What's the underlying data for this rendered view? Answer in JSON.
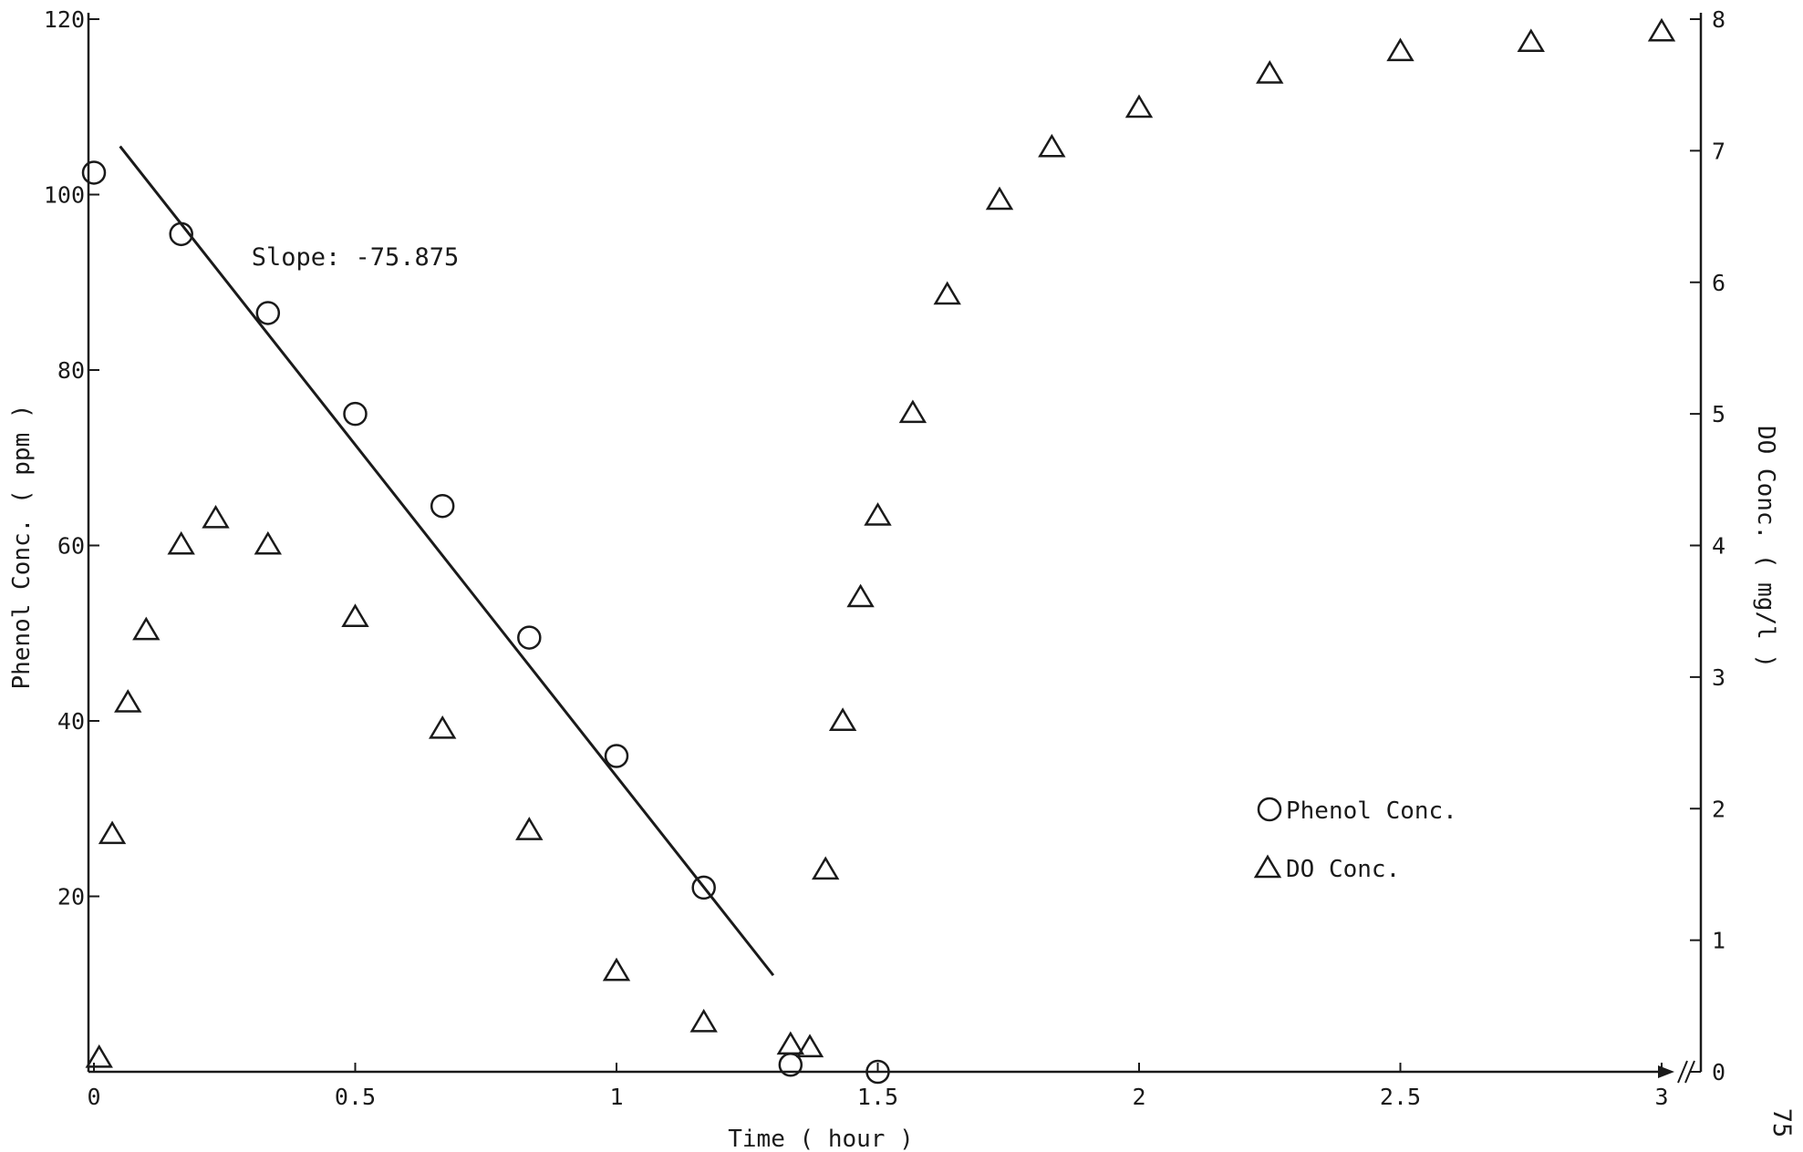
{
  "page_number": "75",
  "chart_data": {
    "type": "scatter",
    "title": "",
    "xlabel": "Time ( hour )",
    "ylabel_left": "Phenol Conc. ( ppm )",
    "ylabel_right": "DO Conc. ( mg/l )",
    "xlim": [
      0,
      3
    ],
    "ylim_left": [
      0,
      120
    ],
    "ylim_right": [
      0,
      8
    ],
    "x_ticks": [
      {
        "value": 0,
        "label": "0"
      },
      {
        "value": 0.5,
        "label": "0.5"
      },
      {
        "value": 1,
        "label": "1"
      },
      {
        "value": 1.5,
        "label": "1.5"
      },
      {
        "value": 2,
        "label": "2"
      },
      {
        "value": 2.5,
        "label": "2.5"
      },
      {
        "value": 3,
        "label": "3"
      }
    ],
    "y_ticks_left": [
      {
        "value": 20,
        "label": "20"
      },
      {
        "value": 40,
        "label": "40"
      },
      {
        "value": 60,
        "label": "60"
      },
      {
        "value": 80,
        "label": "80"
      },
      {
        "value": 100,
        "label": "100"
      },
      {
        "value": 120,
        "label": "120"
      }
    ],
    "y_ticks_right": [
      {
        "value": 0,
        "label": "0"
      },
      {
        "value": 1,
        "label": "1"
      },
      {
        "value": 2,
        "label": "2"
      },
      {
        "value": 3,
        "label": "3"
      },
      {
        "value": 4,
        "label": "4"
      },
      {
        "value": 5,
        "label": "5"
      },
      {
        "value": 6,
        "label": "6"
      },
      {
        "value": 7,
        "label": "7"
      },
      {
        "value": 8,
        "label": "8"
      }
    ],
    "grid": false,
    "legend_position": "right-center",
    "series": [
      {
        "name": "Phenol Conc.",
        "marker": "circle",
        "axis": "left",
        "points": [
          {
            "x": 0,
            "y": 102.5
          },
          {
            "x": 0.167,
            "y": 95.5
          },
          {
            "x": 0.333,
            "y": 86.5
          },
          {
            "x": 0.5,
            "y": 75
          },
          {
            "x": 0.667,
            "y": 64.5
          },
          {
            "x": 0.833,
            "y": 49.5
          },
          {
            "x": 1.0,
            "y": 36
          },
          {
            "x": 1.167,
            "y": 21
          },
          {
            "x": 1.333,
            "y": 0.8
          },
          {
            "x": 1.5,
            "y": 0
          }
        ]
      },
      {
        "name": "DO Conc.",
        "marker": "triangle",
        "axis": "right",
        "points": [
          {
            "x": 0.01,
            "y": 0.1
          },
          {
            "x": 0.035,
            "y": 1.8
          },
          {
            "x": 0.065,
            "y": 2.8
          },
          {
            "x": 0.1,
            "y": 3.35
          },
          {
            "x": 0.167,
            "y": 4.0
          },
          {
            "x": 0.233,
            "y": 4.2
          },
          {
            "x": 0.333,
            "y": 4.0
          },
          {
            "x": 0.5,
            "y": 3.45
          },
          {
            "x": 0.667,
            "y": 2.6
          },
          {
            "x": 0.833,
            "y": 1.83
          },
          {
            "x": 1.0,
            "y": 0.76
          },
          {
            "x": 1.167,
            "y": 0.37
          },
          {
            "x": 1.333,
            "y": 0.2
          },
          {
            "x": 1.37,
            "y": 0.18
          },
          {
            "x": 1.4,
            "y": 1.53
          },
          {
            "x": 1.433,
            "y": 2.66
          },
          {
            "x": 1.467,
            "y": 3.6
          },
          {
            "x": 1.5,
            "y": 4.22
          },
          {
            "x": 1.567,
            "y": 5.0
          },
          {
            "x": 1.633,
            "y": 5.9
          },
          {
            "x": 1.733,
            "y": 6.62
          },
          {
            "x": 1.833,
            "y": 7.02
          },
          {
            "x": 2.0,
            "y": 7.32
          },
          {
            "x": 2.25,
            "y": 7.58
          },
          {
            "x": 2.5,
            "y": 7.75
          },
          {
            "x": 2.75,
            "y": 7.82
          },
          {
            "x": 3.0,
            "y": 7.9
          }
        ]
      }
    ],
    "trend_line": {
      "axis": "left",
      "x": [
        0.05,
        1.3
      ],
      "y": [
        105.5,
        11
      ]
    },
    "annotations": [
      {
        "text": "Slope: -75.875",
        "x": 0.5,
        "y": 93
      }
    ]
  }
}
